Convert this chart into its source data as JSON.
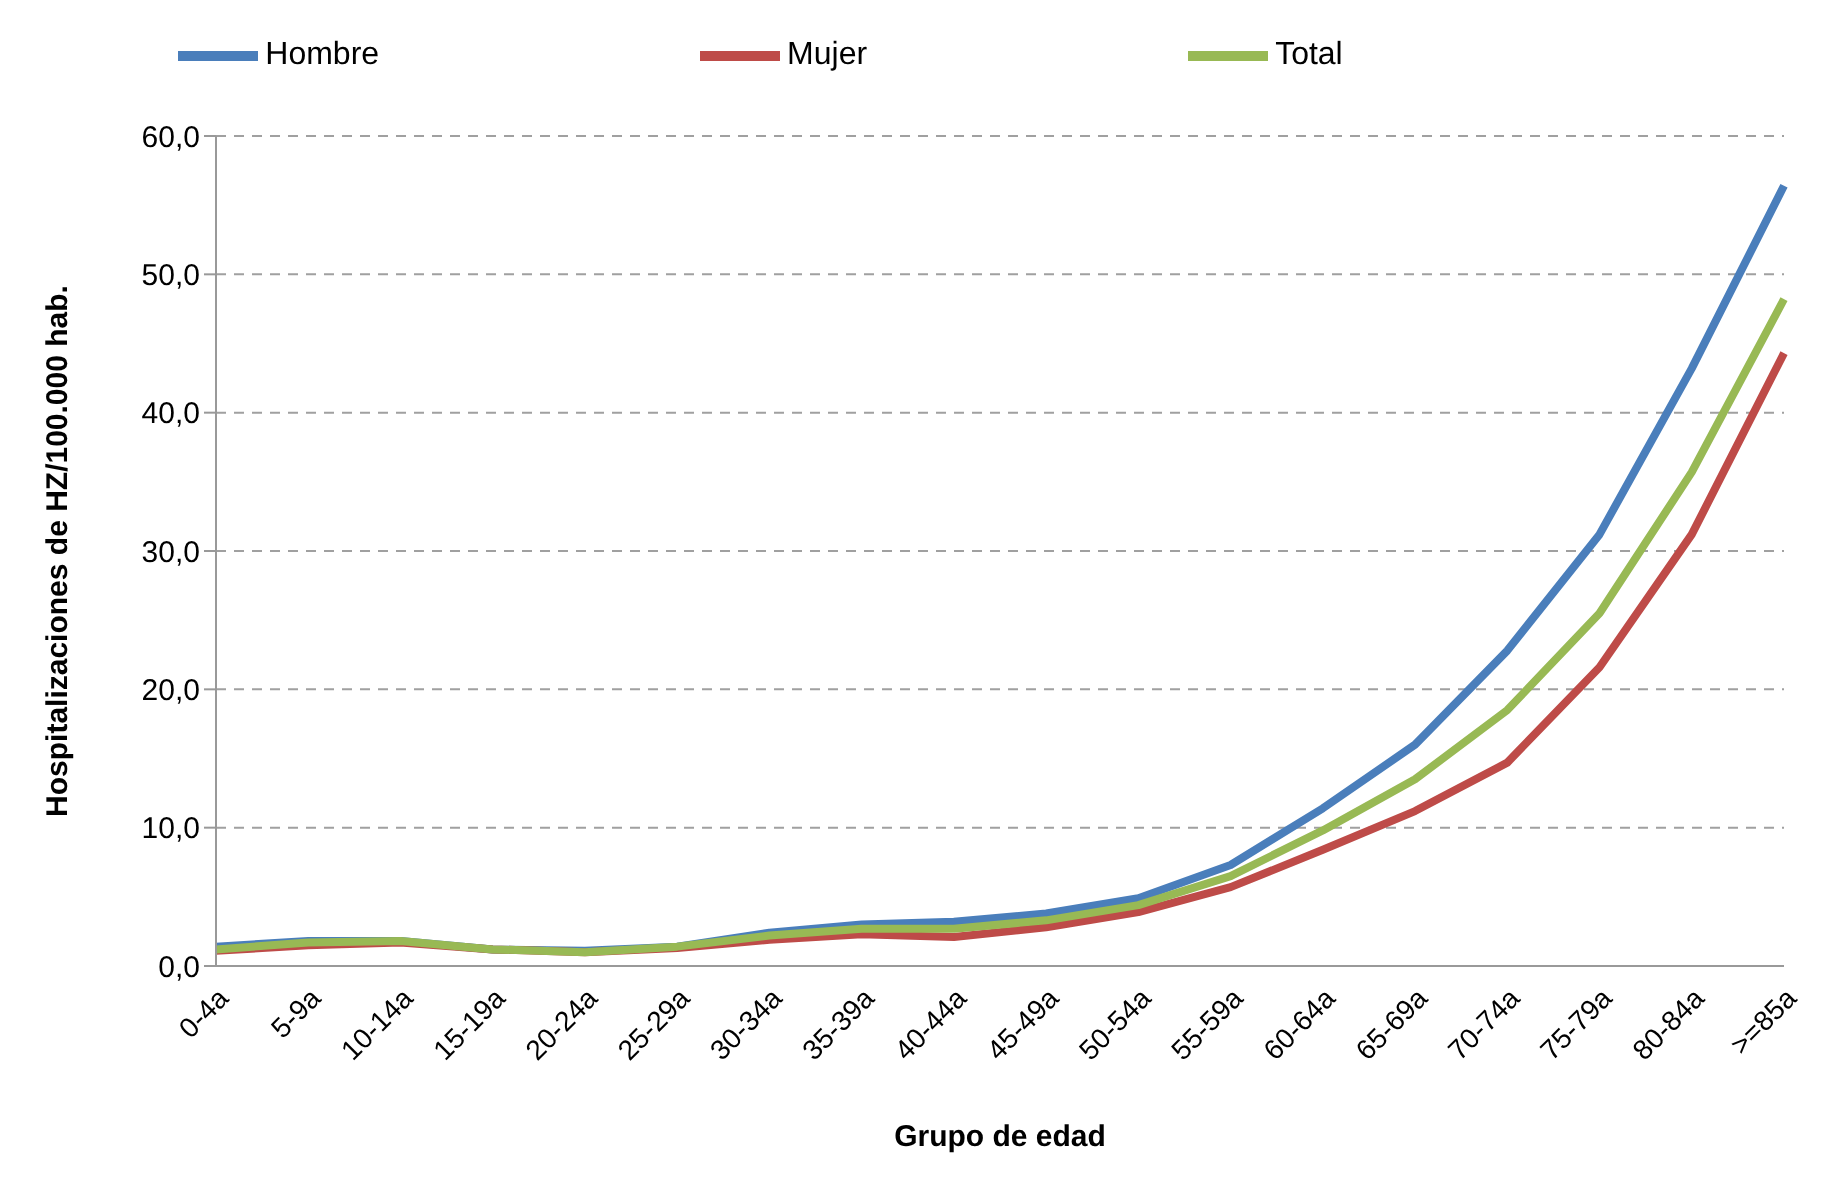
{
  "chart_data": {
    "type": "line",
    "xlabel": "Grupo de edad",
    "ylabel": "Hospitalizaciones de HZ/100.000  hab.",
    "categories": [
      "0-4a",
      "5-9a",
      "10-14a",
      "15-19a",
      "20-24a",
      "25-29a",
      "30-34a",
      "35-39a",
      "40-44a",
      "45-49a",
      "50-54a",
      "55-59a",
      "60-64a",
      "65-69a",
      "70-74a",
      "75-79a",
      "80-84a",
      ">=85a"
    ],
    "series": [
      {
        "name": "Hombre",
        "color": "#4a7ebb",
        "values": [
          1.4,
          1.8,
          1.8,
          1.2,
          1.1,
          1.4,
          2.4,
          3.0,
          3.2,
          3.8,
          4.9,
          7.3,
          11.4,
          16.0,
          22.8,
          31.2,
          43.2,
          56.4
        ]
      },
      {
        "name": "Mujer",
        "color": "#be4b48",
        "values": [
          1.1,
          1.5,
          1.7,
          1.2,
          1.0,
          1.3,
          1.9,
          2.3,
          2.1,
          2.8,
          3.9,
          5.7,
          8.4,
          11.2,
          14.7,
          21.6,
          31.2,
          44.3
        ]
      },
      {
        "name": "Total",
        "color": "#98b954",
        "values": [
          1.2,
          1.7,
          1.8,
          1.2,
          1.0,
          1.4,
          2.2,
          2.7,
          2.7,
          3.3,
          4.4,
          6.5,
          9.8,
          13.5,
          18.5,
          25.5,
          35.7,
          48.2
        ]
      }
    ],
    "ylim": [
      0,
      60
    ],
    "yticks": [
      {
        "value": 0,
        "label": "0,0"
      },
      {
        "value": 10,
        "label": "10,0"
      },
      {
        "value": 20,
        "label": "20,0"
      },
      {
        "value": 30,
        "label": "30,0"
      },
      {
        "value": 40,
        "label": "40,0"
      },
      {
        "value": 50,
        "label": "50,0"
      },
      {
        "value": 60,
        "label": "60,0"
      }
    ],
    "grid": "y",
    "legend": "top",
    "marker": "none",
    "line_style": "solid"
  }
}
